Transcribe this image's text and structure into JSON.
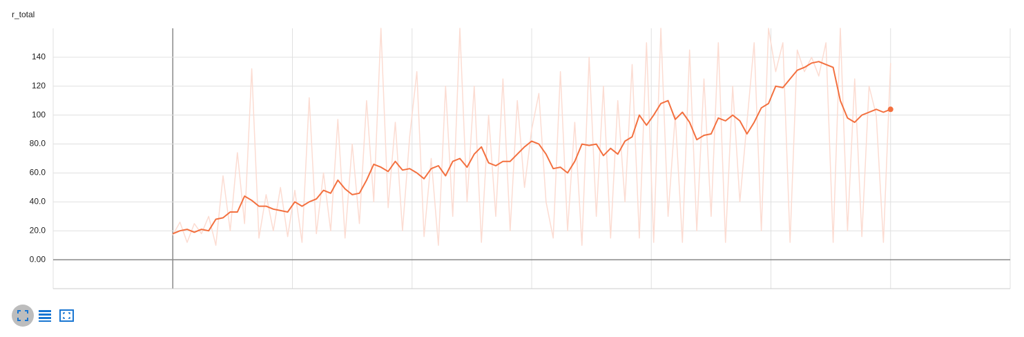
{
  "chart_data": {
    "type": "line",
    "title": "r_total",
    "x": [
      0,
      0.06,
      0.12,
      0.18,
      0.24,
      0.3,
      0.36,
      0.42,
      0.48,
      0.54,
      0.6,
      0.66,
      0.72,
      0.78,
      0.84,
      0.9,
      0.96,
      1.02,
      1.08,
      1.14,
      1.2,
      1.26,
      1.32,
      1.38,
      1.44,
      1.5,
      1.56,
      1.62,
      1.68,
      1.74,
      1.8,
      1.86,
      1.92,
      1.98,
      2.04,
      2.1,
      2.16,
      2.22,
      2.28,
      2.34,
      2.4,
      2.46,
      2.52,
      2.58,
      2.64,
      2.7,
      2.76,
      2.82,
      2.88,
      2.94,
      3,
      3.06,
      3.12,
      3.18,
      3.24,
      3.3,
      3.36,
      3.42,
      3.48,
      3.54,
      3.6,
      3.66,
      3.72,
      3.78,
      3.84,
      3.9,
      3.96,
      4.02,
      4.08,
      4.14,
      4.2,
      4.26,
      4.32,
      4.38,
      4.44,
      4.5,
      4.56,
      4.62,
      4.68,
      4.74,
      4.8,
      4.86,
      4.92,
      4.98,
      5.04,
      5.1,
      5.16,
      5.22,
      5.28,
      5.34,
      5.4,
      5.46,
      5.52,
      5.58,
      5.64,
      5.7,
      5.76,
      5.82,
      5.88,
      5.94,
      6
    ],
    "series": [
      {
        "color": "#fcdcd2",
        "values": [
          17,
          26,
          12,
          25,
          18,
          30,
          10,
          58,
          20,
          74,
          25,
          132,
          15,
          45,
          20,
          50,
          16,
          48,
          12,
          112,
          18,
          60,
          20,
          97,
          15,
          80,
          25,
          110,
          40,
          160,
          36,
          95,
          20,
          85,
          130,
          16,
          70,
          10,
          120,
          30,
          160,
          40,
          120,
          12,
          100,
          30,
          125,
          20,
          110,
          50,
          90,
          115,
          40,
          15,
          130,
          20,
          95,
          10,
          140,
          30,
          120,
          15,
          110,
          40,
          135,
          15,
          150,
          12,
          160,
          30,
          100,
          12,
          145,
          20,
          125,
          30,
          150,
          12,
          120,
          40,
          95,
          150,
          20,
          160,
          130,
          150,
          12,
          145,
          130,
          140,
          127,
          150,
          12,
          160,
          20,
          125,
          16,
          120,
          100,
          12,
          136
        ]
      },
      {
        "color": "#f3703f",
        "values": [
          18,
          20,
          21,
          19,
          21,
          20,
          28,
          29,
          33,
          33,
          44,
          41,
          37,
          37,
          35,
          34,
          33,
          40,
          37,
          40,
          42,
          48,
          46,
          55,
          49,
          45,
          46,
          55,
          66,
          64,
          61,
          68,
          62,
          63,
          60,
          56,
          63,
          65,
          58,
          68,
          70,
          64,
          73,
          78,
          67,
          65,
          68,
          68,
          73,
          78,
          82,
          80,
          73,
          63,
          64,
          60,
          68,
          80,
          79,
          80,
          72,
          77,
          73,
          82,
          85,
          100,
          93,
          100,
          108,
          110,
          97,
          102,
          95,
          83,
          86,
          87,
          98,
          96,
          100,
          96,
          87,
          95,
          105,
          108,
          120,
          119,
          125,
          131,
          133,
          136,
          137,
          135,
          133,
          110,
          98,
          95,
          100,
          102,
          104,
          102,
          104
        ]
      }
    ],
    "xlim": [
      -1,
      7
    ],
    "xticks": [
      -1,
      0,
      1,
      2,
      3,
      4,
      5,
      6,
      7
    ],
    "ylim": [
      -20,
      160
    ],
    "yticks": [
      {
        "value": 0,
        "label": "0.00"
      },
      {
        "value": 20,
        "label": "20.0"
      },
      {
        "value": 40,
        "label": "40.0"
      },
      {
        "value": 60,
        "label": "60.0"
      },
      {
        "value": 80,
        "label": "80.0"
      },
      100,
      120,
      140
    ],
    "grid": true
  }
}
